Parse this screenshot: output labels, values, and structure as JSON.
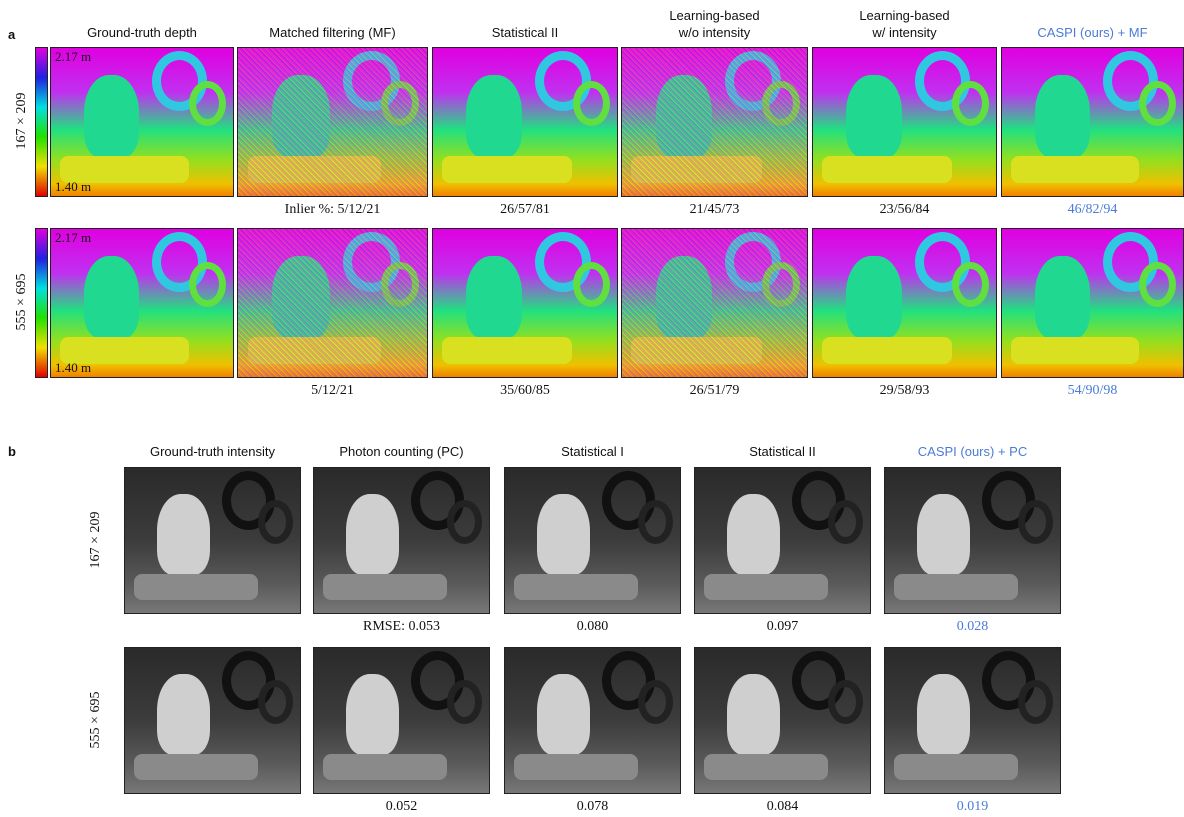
{
  "panel_a": {
    "label": "a",
    "columns": [
      [
        "Ground-truth depth"
      ],
      [
        "Matched filtering (MF)"
      ],
      [
        "Statistical II"
      ],
      [
        "Learning-based",
        "w/o intensity"
      ],
      [
        "Learning-based",
        "w/ intensity"
      ],
      [
        "CASPI (ours) + MF"
      ]
    ],
    "colorbar": {
      "max": "2.17 m",
      "min": "1.40 m"
    },
    "rows": [
      {
        "resolution": "167 × 209",
        "scores": [
          "Inlier %: 5/12/21",
          "26/57/81",
          "21/45/73",
          "23/56/84",
          "46/82/94"
        ]
      },
      {
        "resolution": "555 × 695",
        "scores": [
          "5/12/21",
          "35/60/85",
          "26/51/79",
          "29/58/93",
          "54/90/98"
        ]
      }
    ]
  },
  "panel_b": {
    "label": "b",
    "columns": [
      [
        "Ground-truth intensity"
      ],
      [
        "Photon counting (PC)"
      ],
      [
        "Statistical I"
      ],
      [
        "Statistical II"
      ],
      [
        "CASPI (ours) + PC"
      ]
    ],
    "rows": [
      {
        "resolution": "167 × 209",
        "scores": [
          "RMSE: 0.053",
          "0.080",
          "0.097",
          "0.028"
        ]
      },
      {
        "resolution": "555 × 695",
        "scores": [
          "0.052",
          "0.078",
          "0.084",
          "0.019"
        ]
      }
    ]
  }
}
